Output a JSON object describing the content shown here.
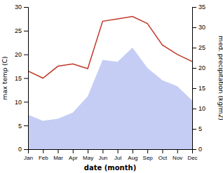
{
  "chart_data": {
    "type": "line",
    "xlabel": "date (month)",
    "ylabel": "max temp (C)",
    "y2label": "med. precipitation (kg/m2)",
    "categories": [
      "Jan",
      "Feb",
      "Mar",
      "Apr",
      "May",
      "Jun",
      "Jul",
      "Aug",
      "Sep",
      "Oct",
      "Nov",
      "Dec"
    ],
    "series": [
      {
        "type": "line",
        "color": "#c0392b",
        "values": [
          16.5,
          15.0,
          17.5,
          18.0,
          17.0,
          27.0,
          27.5,
          28.0,
          26.5,
          22.0,
          20.0,
          18.5
        ]
      },
      {
        "type": "area",
        "color": "#c5cdf5",
        "axis": "y2",
        "values": [
          8.5,
          7.0,
          7.5,
          9.0,
          13.0,
          22.0,
          21.5,
          25.0,
          20.0,
          17.0,
          15.5,
          12.0
        ]
      }
    ],
    "ylim": [
      0,
      30
    ],
    "yticks": [
      0,
      5,
      10,
      15,
      20,
      25,
      30
    ],
    "y2lim": [
      0,
      35
    ],
    "y2ticks": [
      0,
      5,
      10,
      15,
      20,
      25,
      30,
      35
    ]
  }
}
